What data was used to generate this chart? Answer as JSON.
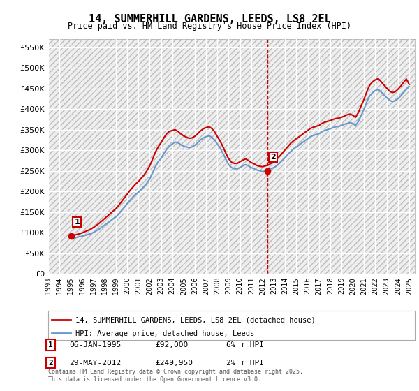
{
  "title": "14, SUMMERHILL GARDENS, LEEDS, LS8 2EL",
  "subtitle": "Price paid vs. HM Land Registry's House Price Index (HPI)",
  "ylabel": "",
  "ylim": [
    0,
    570000
  ],
  "yticks": [
    0,
    50000,
    100000,
    150000,
    200000,
    250000,
    300000,
    350000,
    400000,
    450000,
    500000,
    550000
  ],
  "ytick_labels": [
    "£0",
    "£50K",
    "£100K",
    "£150K",
    "£200K",
    "£250K",
    "£300K",
    "£350K",
    "£400K",
    "£450K",
    "£500K",
    "£550K"
  ],
  "bg_color": "#ffffff",
  "plot_bg_color": "#f0f0f0",
  "grid_color": "#ffffff",
  "hatch_color": "#d0d0d0",
  "sale1_date": 1995.02,
  "sale1_price": 92000,
  "sale1_label": "1",
  "sale2_date": 2012.41,
  "sale2_price": 249950,
  "sale2_label": "2",
  "legend_line1": "14, SUMMERHILL GARDENS, LEEDS, LS8 2EL (detached house)",
  "legend_line2": "HPI: Average price, detached house, Leeds",
  "ann1_date": "06-JAN-1995",
  "ann1_price": "£92,000",
  "ann1_hpi": "6% ↑ HPI",
  "ann2_date": "29-MAY-2012",
  "ann2_price": "£249,950",
  "ann2_hpi": "2% ↑ HPI",
  "footer": "Contains HM Land Registry data © Crown copyright and database right 2025.\nThis data is licensed under the Open Government Licence v3.0.",
  "sale_marker_color": "#cc0000",
  "hpi_line_color": "#6699cc",
  "price_line_color": "#cc0000",
  "vline_color": "#cc0000",
  "hpi_data_x": [
    1995.0,
    1995.25,
    1995.5,
    1995.75,
    1996.0,
    1996.25,
    1996.5,
    1996.75,
    1997.0,
    1997.25,
    1997.5,
    1997.75,
    1998.0,
    1998.25,
    1998.5,
    1998.75,
    1999.0,
    1999.25,
    1999.5,
    1999.75,
    2000.0,
    2000.25,
    2000.5,
    2000.75,
    2001.0,
    2001.25,
    2001.5,
    2001.75,
    2002.0,
    2002.25,
    2002.5,
    2002.75,
    2003.0,
    2003.25,
    2003.5,
    2003.75,
    2004.0,
    2004.25,
    2004.5,
    2004.75,
    2005.0,
    2005.25,
    2005.5,
    2005.75,
    2006.0,
    2006.25,
    2006.5,
    2006.75,
    2007.0,
    2007.25,
    2007.5,
    2007.75,
    2008.0,
    2008.25,
    2008.5,
    2008.75,
    2009.0,
    2009.25,
    2009.5,
    2009.75,
    2010.0,
    2010.25,
    2010.5,
    2010.75,
    2011.0,
    2011.25,
    2011.5,
    2011.75,
    2012.0,
    2012.25,
    2012.5,
    2012.75,
    2013.0,
    2013.25,
    2013.5,
    2013.75,
    2014.0,
    2014.25,
    2014.5,
    2014.75,
    2015.0,
    2015.25,
    2015.5,
    2015.75,
    2016.0,
    2016.25,
    2016.5,
    2016.75,
    2017.0,
    2017.25,
    2017.5,
    2017.75,
    2018.0,
    2018.25,
    2018.5,
    2018.75,
    2019.0,
    2019.25,
    2019.5,
    2019.75,
    2020.0,
    2020.25,
    2020.5,
    2020.75,
    2021.0,
    2021.25,
    2021.5,
    2021.75,
    2022.0,
    2022.25,
    2022.5,
    2022.75,
    2023.0,
    2023.25,
    2023.5,
    2023.75,
    2024.0,
    2024.25,
    2024.5,
    2024.75,
    2025.0
  ],
  "hpi_data_y": [
    86000,
    87000,
    88000,
    90000,
    91000,
    93000,
    95000,
    97000,
    100000,
    104000,
    108000,
    113000,
    118000,
    123000,
    128000,
    133000,
    138000,
    145000,
    153000,
    161000,
    170000,
    178000,
    186000,
    193000,
    198000,
    205000,
    212000,
    220000,
    230000,
    245000,
    260000,
    272000,
    280000,
    292000,
    302000,
    310000,
    315000,
    320000,
    318000,
    314000,
    310000,
    308000,
    306000,
    308000,
    312000,
    318000,
    325000,
    330000,
    333000,
    335000,
    332000,
    325000,
    315000,
    305000,
    292000,
    278000,
    265000,
    258000,
    255000,
    255000,
    258000,
    262000,
    265000,
    262000,
    258000,
    255000,
    252000,
    250000,
    248000,
    250000,
    252000,
    255000,
    258000,
    262000,
    268000,
    275000,
    282000,
    290000,
    297000,
    303000,
    308000,
    313000,
    318000,
    323000,
    328000,
    333000,
    336000,
    338000,
    340000,
    345000,
    348000,
    350000,
    352000,
    355000,
    357000,
    358000,
    360000,
    363000,
    365000,
    367000,
    365000,
    360000,
    370000,
    385000,
    400000,
    418000,
    432000,
    440000,
    445000,
    448000,
    442000,
    435000,
    428000,
    422000,
    418000,
    420000,
    425000,
    432000,
    440000,
    448000,
    455000
  ],
  "price_data_x": [
    1995.0,
    1995.25,
    1995.5,
    1995.75,
    1996.0,
    1996.25,
    1996.5,
    1996.75,
    1997.0,
    1997.25,
    1997.5,
    1997.75,
    1998.0,
    1998.25,
    1998.5,
    1998.75,
    1999.0,
    1999.25,
    1999.5,
    1999.75,
    2000.0,
    2000.25,
    2000.5,
    2000.75,
    2001.0,
    2001.25,
    2001.5,
    2001.75,
    2002.0,
    2002.25,
    2002.5,
    2002.75,
    2003.0,
    2003.25,
    2003.5,
    2003.75,
    2004.0,
    2004.25,
    2004.5,
    2004.75,
    2005.0,
    2005.25,
    2005.5,
    2005.75,
    2006.0,
    2006.25,
    2006.5,
    2006.75,
    2007.0,
    2007.25,
    2007.5,
    2007.75,
    2008.0,
    2008.25,
    2008.5,
    2008.75,
    2009.0,
    2009.25,
    2009.5,
    2009.75,
    2010.0,
    2010.25,
    2010.5,
    2010.75,
    2011.0,
    2011.25,
    2011.5,
    2011.75,
    2012.0,
    2012.25,
    2012.5,
    2012.75,
    2013.0,
    2013.25,
    2013.5,
    2013.75,
    2014.0,
    2014.25,
    2014.5,
    2014.75,
    2015.0,
    2015.25,
    2015.5,
    2015.75,
    2016.0,
    2016.25,
    2016.5,
    2016.75,
    2017.0,
    2017.25,
    2017.5,
    2017.75,
    2018.0,
    2018.25,
    2018.5,
    2018.75,
    2019.0,
    2019.25,
    2019.5,
    2019.75,
    2020.0,
    2020.25,
    2020.5,
    2020.75,
    2021.0,
    2021.25,
    2021.5,
    2021.75,
    2022.0,
    2022.25,
    2022.5,
    2022.75,
    2023.0,
    2023.25,
    2023.5,
    2023.75,
    2024.0,
    2024.25,
    2024.5,
    2024.75,
    2025.0
  ],
  "price_data_y": [
    92000,
    93500,
    95000,
    97000,
    99000,
    102000,
    105000,
    108000,
    112000,
    117000,
    122000,
    128000,
    134000,
    140000,
    146000,
    152000,
    158000,
    166000,
    175000,
    184000,
    193000,
    202000,
    210000,
    218000,
    224000,
    232000,
    240000,
    250000,
    262000,
    278000,
    295000,
    308000,
    318000,
    330000,
    340000,
    346000,
    348000,
    350000,
    346000,
    340000,
    335000,
    332000,
    329000,
    330000,
    334000,
    340000,
    347000,
    352000,
    355000,
    357000,
    353000,
    345000,
    333000,
    322000,
    308000,
    293000,
    279000,
    271000,
    268000,
    268000,
    272000,
    276000,
    279000,
    275000,
    270000,
    267000,
    263000,
    261000,
    260000,
    262000,
    264000,
    268000,
    272000,
    278000,
    285000,
    293000,
    301000,
    309000,
    317000,
    323000,
    328000,
    333000,
    338000,
    343000,
    348000,
    353000,
    356000,
    358000,
    360000,
    365000,
    368000,
    370000,
    372000,
    375000,
    377000,
    378000,
    380000,
    383000,
    386000,
    388000,
    385000,
    380000,
    392000,
    408000,
    424000,
    443000,
    458000,
    466000,
    471000,
    474000,
    467000,
    459000,
    451000,
    444000,
    440000,
    442000,
    448000,
    456000,
    465000,
    473000,
    460000
  ],
  "xlim": [
    1993.0,
    2025.5
  ],
  "xticks": [
    1993,
    1994,
    1995,
    1996,
    1997,
    1998,
    1999,
    2000,
    2001,
    2002,
    2003,
    2004,
    2005,
    2006,
    2007,
    2008,
    2009,
    2010,
    2011,
    2012,
    2013,
    2014,
    2015,
    2016,
    2017,
    2018,
    2019,
    2020,
    2021,
    2022,
    2023,
    2024,
    2025
  ]
}
